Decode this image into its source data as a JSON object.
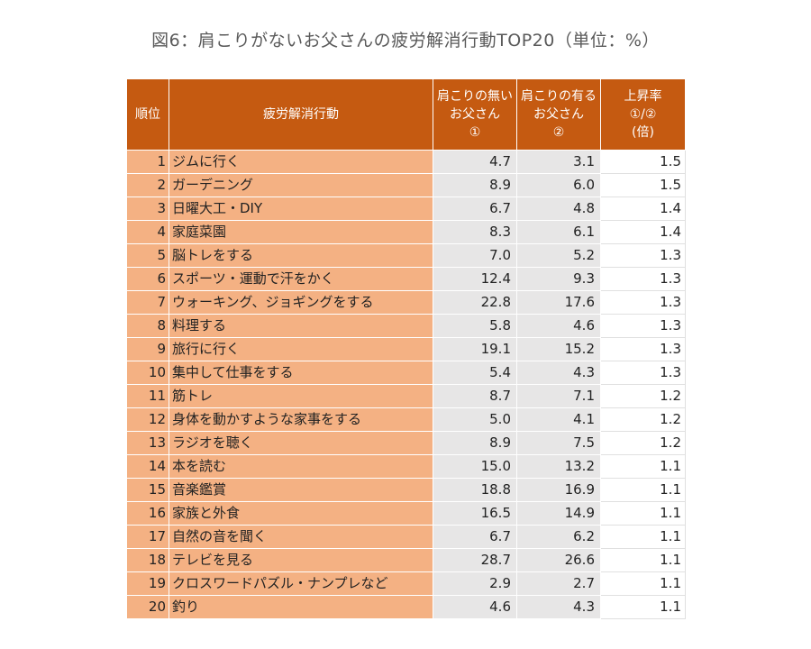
{
  "chart_data": {
    "type": "table",
    "title": "図6：肩こりがないお父さんの疲労解消行動TOP20（単位：%）",
    "columns": [
      {
        "key": "rank",
        "lines": [
          "順位"
        ]
      },
      {
        "key": "activity",
        "lines": [
          "疲労解消行動"
        ]
      },
      {
        "key": "no_stiff",
        "lines": [
          "肩こりの無い",
          "お父さん",
          "①"
        ]
      },
      {
        "key": "stiff",
        "lines": [
          "肩こりの有る",
          "お父さん",
          "②"
        ]
      },
      {
        "key": "ratio",
        "lines": [
          "上昇率",
          "①/②",
          "(倍)"
        ]
      }
    ],
    "rows": [
      {
        "rank": "1",
        "activity": "ジムに行く",
        "no_stiff": "4.7",
        "stiff": "3.1",
        "ratio": "1.5"
      },
      {
        "rank": "2",
        "activity": "ガーデニング",
        "no_stiff": "8.9",
        "stiff": "6.0",
        "ratio": "1.5"
      },
      {
        "rank": "3",
        "activity": "日曜大工・DIY",
        "no_stiff": "6.7",
        "stiff": "4.8",
        "ratio": "1.4"
      },
      {
        "rank": "4",
        "activity": "家庭菜園",
        "no_stiff": "8.3",
        "stiff": "6.1",
        "ratio": "1.4"
      },
      {
        "rank": "5",
        "activity": "脳トレをする",
        "no_stiff": "7.0",
        "stiff": "5.2",
        "ratio": "1.3"
      },
      {
        "rank": "6",
        "activity": "スポーツ・運動で汗をかく",
        "no_stiff": "12.4",
        "stiff": "9.3",
        "ratio": "1.3"
      },
      {
        "rank": "7",
        "activity": "ウォーキング、ジョギングをする",
        "no_stiff": "22.8",
        "stiff": "17.6",
        "ratio": "1.3"
      },
      {
        "rank": "8",
        "activity": "料理する",
        "no_stiff": "5.8",
        "stiff": "4.6",
        "ratio": "1.3"
      },
      {
        "rank": "9",
        "activity": "旅行に行く",
        "no_stiff": "19.1",
        "stiff": "15.2",
        "ratio": "1.3"
      },
      {
        "rank": "10",
        "activity": "集中して仕事をする",
        "no_stiff": "5.4",
        "stiff": "4.3",
        "ratio": "1.3"
      },
      {
        "rank": "11",
        "activity": "筋トレ",
        "no_stiff": "8.7",
        "stiff": "7.1",
        "ratio": "1.2"
      },
      {
        "rank": "12",
        "activity": "身体を動かすような家事をする",
        "no_stiff": "5.0",
        "stiff": "4.1",
        "ratio": "1.2"
      },
      {
        "rank": "13",
        "activity": "ラジオを聴く",
        "no_stiff": "8.9",
        "stiff": "7.5",
        "ratio": "1.2"
      },
      {
        "rank": "14",
        "activity": "本を読む",
        "no_stiff": "15.0",
        "stiff": "13.2",
        "ratio": "1.1"
      },
      {
        "rank": "15",
        "activity": "音楽鑑賞",
        "no_stiff": "18.8",
        "stiff": "16.9",
        "ratio": "1.1"
      },
      {
        "rank": "16",
        "activity": "家族と外食",
        "no_stiff": "16.5",
        "stiff": "14.9",
        "ratio": "1.1"
      },
      {
        "rank": "17",
        "activity": "自然の音を聞く",
        "no_stiff": "6.7",
        "stiff": "6.2",
        "ratio": "1.1"
      },
      {
        "rank": "18",
        "activity": "テレビを見る",
        "no_stiff": "28.7",
        "stiff": "26.6",
        "ratio": "1.1"
      },
      {
        "rank": "19",
        "activity": "クロスワードパズル・ナンプレなど",
        "no_stiff": "2.9",
        "stiff": "2.7",
        "ratio": "1.1"
      },
      {
        "rank": "20",
        "activity": "釣り",
        "no_stiff": "4.6",
        "stiff": "4.3",
        "ratio": "1.1"
      }
    ]
  },
  "colors": {
    "header": "#c55a11",
    "label_cells": "#f4b183",
    "value_cells": "#e7e6e6",
    "ratio_cells": "#ffffff"
  }
}
